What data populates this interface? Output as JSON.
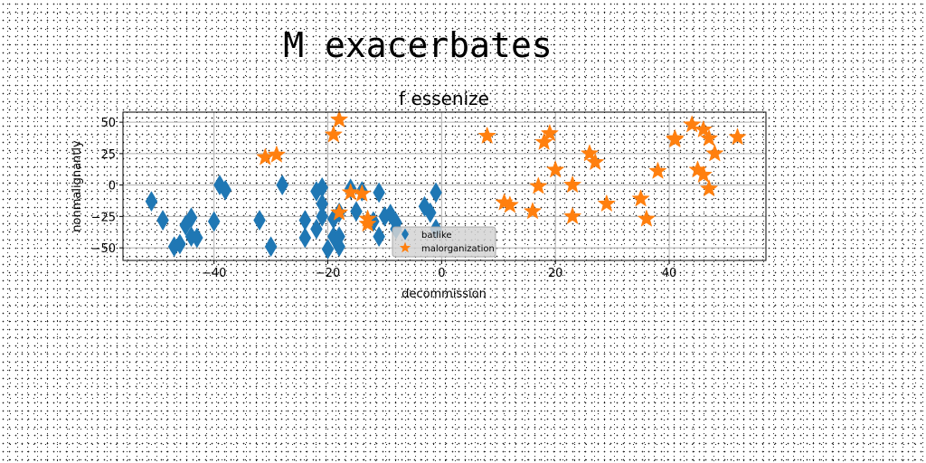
{
  "suptitle": "M exacerbates",
  "chart_data": {
    "type": "scatter",
    "title": "f essenize",
    "xlabel": "decommission",
    "ylabel": "nonmalignantly",
    "xlim": [
      -56,
      57
    ],
    "ylim": [
      -60,
      58
    ],
    "xticks": [
      -40,
      -20,
      0,
      20,
      40
    ],
    "yticks": [
      -50,
      -25,
      0,
      25,
      50
    ],
    "grid": true,
    "legend_position": "lower-center",
    "series": [
      {
        "name": "batlike",
        "marker": "diamond",
        "color": "#1f77b4",
        "points": [
          [
            -51,
            -13
          ],
          [
            -49,
            -28
          ],
          [
            -47,
            -49
          ],
          [
            -46,
            -47
          ],
          [
            -45,
            -32
          ],
          [
            -44,
            -41
          ],
          [
            -44,
            -26
          ],
          [
            -43,
            -42
          ],
          [
            -40,
            -29
          ],
          [
            -39,
            0
          ],
          [
            -38,
            -4
          ],
          [
            -32,
            -28
          ],
          [
            -30,
            -49
          ],
          [
            -28,
            0
          ],
          [
            -24,
            -42
          ],
          [
            -24,
            -28
          ],
          [
            -22,
            -5
          ],
          [
            -22,
            -35
          ],
          [
            -21,
            -15
          ],
          [
            -21,
            -25
          ],
          [
            -21,
            -2
          ],
          [
            -20,
            -51
          ],
          [
            -19,
            -41
          ],
          [
            -19,
            -27
          ],
          [
            -18,
            -49
          ],
          [
            -18,
            -22
          ],
          [
            -18,
            -41
          ],
          [
            -16,
            -3
          ],
          [
            -15,
            -21
          ],
          [
            -14,
            -5
          ],
          [
            -12,
            -29
          ],
          [
            -11,
            -6
          ],
          [
            -11,
            -41
          ],
          [
            -10,
            -25
          ],
          [
            -9,
            -23
          ],
          [
            -8,
            -30
          ],
          [
            -8,
            -35
          ],
          [
            -3,
            -17
          ],
          [
            -2,
            -22
          ],
          [
            -1,
            -6
          ],
          [
            -1,
            -35
          ]
        ]
      },
      {
        "name": "malorganization",
        "marker": "star",
        "color": "#ff7f0e",
        "points": [
          [
            -31,
            22
          ],
          [
            -29,
            24
          ],
          [
            -19,
            40
          ],
          [
            -18,
            52
          ],
          [
            -18,
            -22
          ],
          [
            -16,
            -6
          ],
          [
            -14,
            -7
          ],
          [
            -13,
            -27
          ],
          [
            -13,
            -31
          ],
          [
            8,
            39
          ],
          [
            11,
            -14
          ],
          [
            12,
            -16
          ],
          [
            16,
            -21
          ],
          [
            17,
            -1
          ],
          [
            18,
            34
          ],
          [
            19,
            41
          ],
          [
            20,
            12
          ],
          [
            23,
            0
          ],
          [
            23,
            -25
          ],
          [
            26,
            25
          ],
          [
            27,
            18
          ],
          [
            29,
            -15
          ],
          [
            35,
            -11
          ],
          [
            36,
            -27
          ],
          [
            38,
            11
          ],
          [
            41,
            36
          ],
          [
            41,
            37
          ],
          [
            44,
            48
          ],
          [
            45,
            12
          ],
          [
            46,
            44
          ],
          [
            46,
            8
          ],
          [
            47,
            37
          ],
          [
            47,
            -3
          ],
          [
            48,
            25
          ],
          [
            52,
            38
          ]
        ]
      }
    ]
  }
}
